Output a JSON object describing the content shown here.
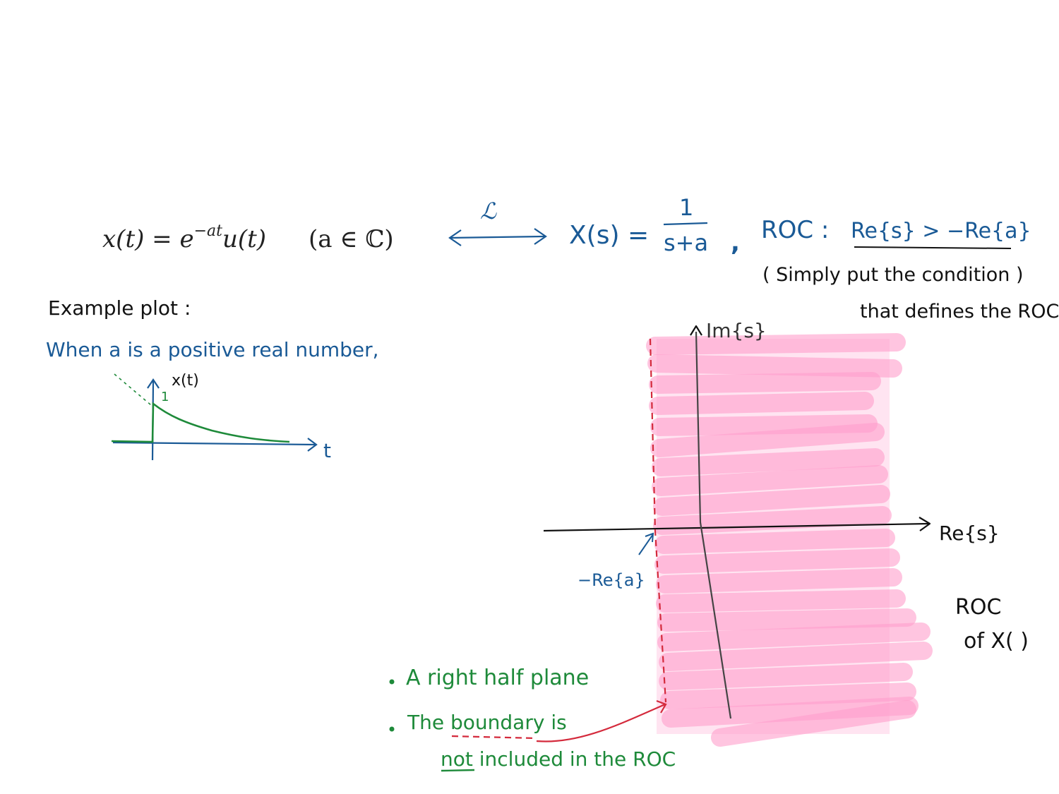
{
  "colors": {
    "blue": "#1a5a96",
    "black": "#111111",
    "green": "#1e8a3a",
    "red": "#d42a3c",
    "pink": "#ff9ecb"
  },
  "formula": {
    "lhs": "x(t) = e",
    "exponent": "−at",
    "lhs_tail": "u(t)",
    "condition": "(a ∈ ℂ)",
    "transform_symbol": "ℒ",
    "rhs_prefix": "X(s) =",
    "numerator": "1",
    "denominator": "s+a",
    "separator": ",",
    "roc_label": "ROC :",
    "roc_condition": "Re{s} > −Re{a}"
  },
  "note": {
    "line1": "( Simply put the condition )",
    "line2": "that defines the ROC"
  },
  "example": {
    "heading": "Example plot :",
    "subheading": "When a is a positive real number,",
    "y_label": "x(t)",
    "tick_label": "1",
    "x_label": "t"
  },
  "splane": {
    "imag_label": "Im{s}",
    "real_label": "Re{s}",
    "boundary_label": "−Re{a}",
    "roc_label_line1": "ROC",
    "roc_label_line2": "of X(  )"
  },
  "bullets": {
    "item1": "A right half plane",
    "item2_part1": "The",
    "item2_underlined": "boundary",
    "item2_part2": "is",
    "item2_line2_underlined": "not",
    "item2_line2_rest": "included in the ROC"
  }
}
